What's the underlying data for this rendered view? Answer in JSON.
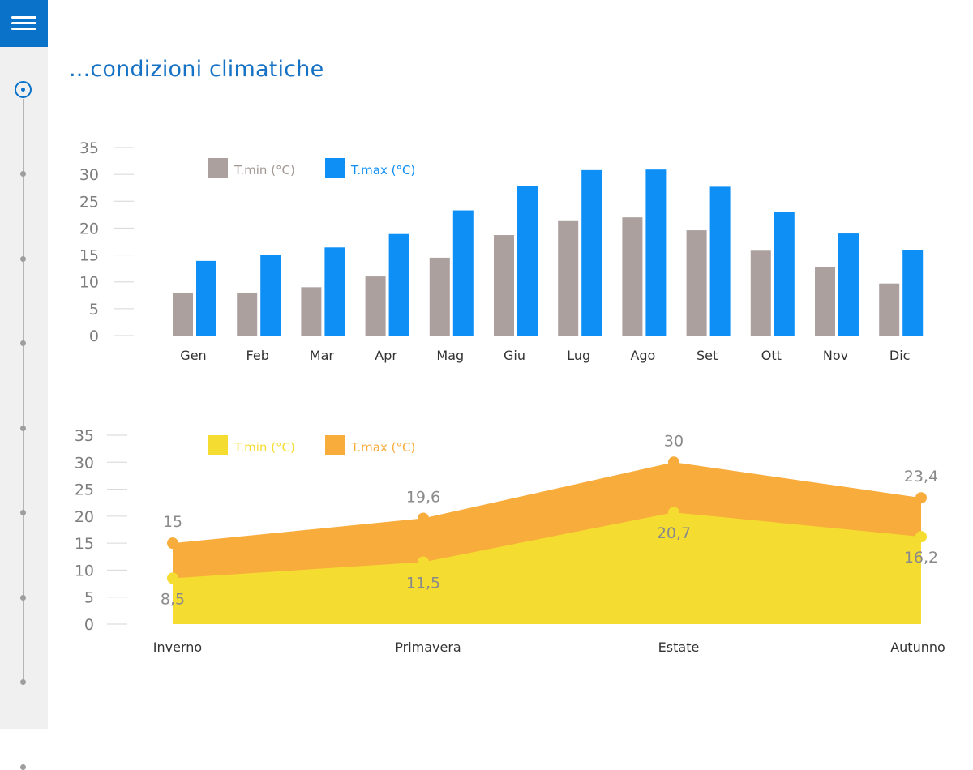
{
  "title": "...condizioni climatiche",
  "colors": {
    "accent": "#0a73c9",
    "bar_min": "#aca09e",
    "bar_max": "#0d8ff6",
    "area_min": "#f5dc31",
    "area_max": "#f8ac3c"
  },
  "sidebar": {
    "menu_icon": "hamburger-menu-icon",
    "timeline_points": 8
  },
  "chart_data": [
    {
      "type": "bar",
      "categories": [
        "Gen",
        "Feb",
        "Mar",
        "Apr",
        "Mag",
        "Giu",
        "Lug",
        "Ago",
        "Set",
        "Ott",
        "Nov",
        "Dic"
      ],
      "series": [
        {
          "name": "T.min (°C)",
          "values": [
            8,
            8,
            9,
            11,
            14.5,
            18.7,
            21.3,
            22,
            19.6,
            15.8,
            12.7,
            9.7
          ]
        },
        {
          "name": "T.max (°C)",
          "values": [
            13.9,
            15,
            16.4,
            18.9,
            23.3,
            27.8,
            30.8,
            30.9,
            27.7,
            23,
            19,
            15.9
          ]
        }
      ],
      "yticks": [
        "0",
        "5",
        "10",
        "15",
        "20",
        "25",
        "30",
        "35"
      ],
      "ylim": [
        0,
        35
      ],
      "legend_position": "top-left"
    },
    {
      "type": "area",
      "categories": [
        "Inverno",
        "Primavera",
        "Estate",
        "Autunno"
      ],
      "series": [
        {
          "name": "T.min (°C)",
          "values": [
            8.5,
            11.5,
            20.7,
            16.2
          ],
          "labels": [
            "8,5",
            "11,5",
            "20,7",
            "16,2"
          ]
        },
        {
          "name": "T.max (°C)",
          "values": [
            15,
            19.6,
            30,
            23.4
          ],
          "labels": [
            "15",
            "19,6",
            "30",
            "23,4"
          ]
        }
      ],
      "yticks": [
        "0",
        "5",
        "10",
        "15",
        "20",
        "25",
        "30",
        "35"
      ],
      "ylim": [
        0,
        35
      ],
      "legend_position": "top-left"
    }
  ]
}
